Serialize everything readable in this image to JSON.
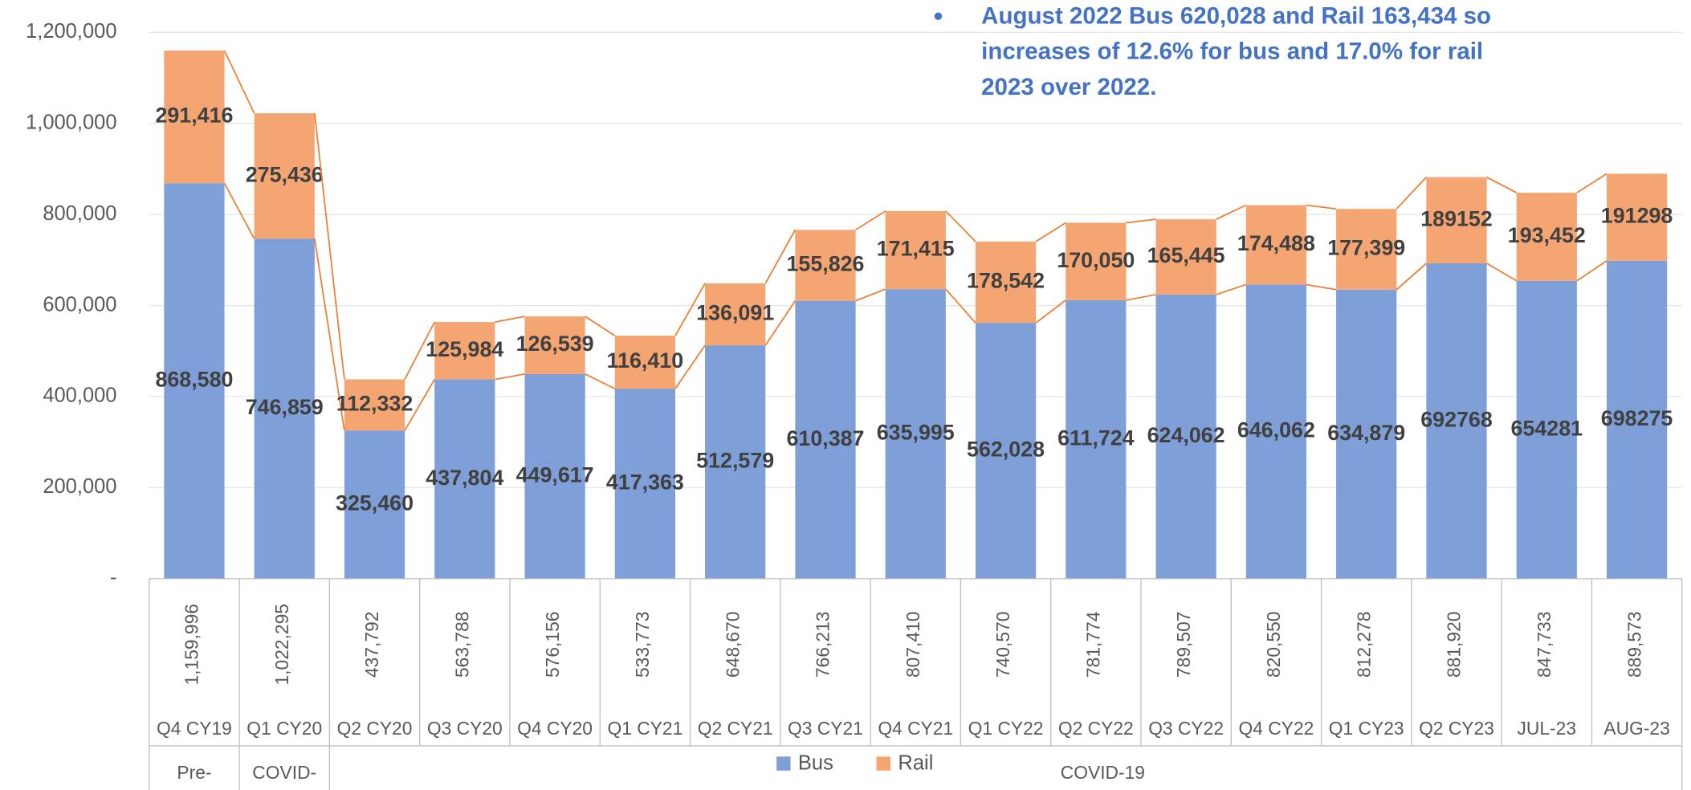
{
  "chart_data": {
    "type": "stacked_bar",
    "annotation": [
      "August 2022 Bus 620,028 and Rail 163,434 so",
      "increases of 12.6% for bus and 17.0% for rail",
      "2023 over 2022."
    ],
    "categories": [
      "Q4 CY19",
      "Q1 CY20",
      "Q2 CY20",
      "Q3 CY20",
      "Q4 CY20",
      "Q1 CY21",
      "Q2 CY21",
      "Q3 CY21",
      "Q4 CY21",
      "Q1 CY22",
      "Q2 CY22",
      "Q3 CY22",
      "Q4 CY22",
      "Q1 CY23",
      "Q2 CY23",
      "JUL-23",
      "AUG-23"
    ],
    "groups": [
      "Pre-",
      "COVID-",
      "COVID-19"
    ],
    "series": [
      {
        "name": "Bus",
        "color": "#7f9fd9",
        "values": [
          868580,
          746859,
          325460,
          437804,
          449617,
          417363,
          512579,
          610387,
          635995,
          562028,
          611724,
          624062,
          646062,
          634879,
          692768,
          654281,
          698275
        ],
        "value_labels": [
          "868,580",
          "746,859",
          "325,460",
          "437,804",
          "449,617",
          "417,363",
          "512,579",
          "610,387",
          "635,995",
          "562,028",
          "611,724",
          "624,062",
          "646,062",
          "634,879",
          "692768",
          "654281",
          "698275"
        ]
      },
      {
        "name": "Rail",
        "color": "#f4a572",
        "values": [
          291416,
          275436,
          112332,
          125984,
          126539,
          116410,
          136091,
          155826,
          171415,
          178542,
          170050,
          165445,
          174488,
          177399,
          189152,
          193452,
          191298
        ],
        "value_labels": [
          "291,416",
          "275,436",
          "112,332",
          "125,984",
          "126,539",
          "116,410",
          "136,091",
          "155,826",
          "171,415",
          "178,542",
          "170,050",
          "165,445",
          "174,488",
          "177,399",
          "189152",
          "193,452",
          "191298"
        ]
      }
    ],
    "totals": {
      "values": [
        1159996,
        1022295,
        437792,
        563788,
        576156,
        533773,
        648670,
        766213,
        807410,
        740570,
        781774,
        789507,
        820550,
        812278,
        881920,
        847733,
        889573
      ],
      "value_labels": [
        "1,159,996",
        "1,022,295",
        "437,792",
        "563,788",
        "576,156",
        "533,773",
        "648,670",
        "766,213",
        "807,410",
        "740,570",
        "781,774",
        "789,507",
        "820,550",
        "812,278",
        "881,920",
        "847,733",
        "889,573"
      ]
    },
    "series_line_color": "#ed7d31",
    "ylim": [
      0,
      1200000
    ],
    "yticks": [
      {
        "value": 0,
        "label": "-"
      },
      {
        "value": 200000,
        "label": "200,000"
      },
      {
        "value": 400000,
        "label": "400,000"
      },
      {
        "value": 600000,
        "label": "600,000"
      },
      {
        "value": 800000,
        "label": "800,000"
      },
      {
        "value": 1000000,
        "label": "1,000,000"
      },
      {
        "value": 1200000,
        "label": "1,200,000"
      }
    ],
    "grid": true
  }
}
